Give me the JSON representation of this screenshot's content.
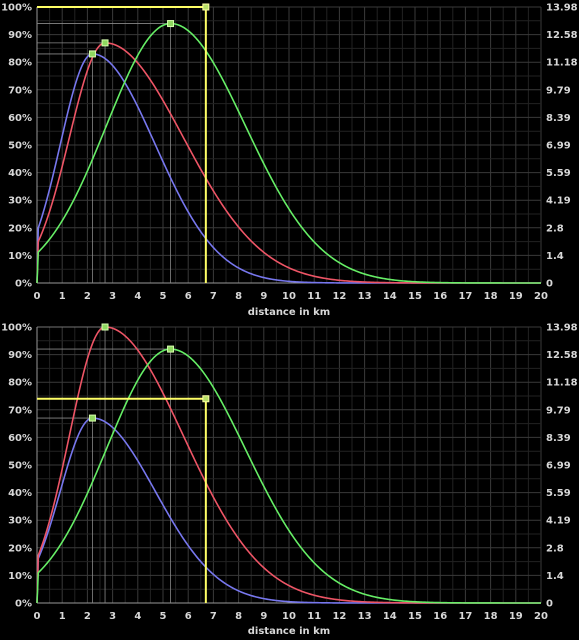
{
  "chart_data": [
    {
      "type": "line",
      "xlabel": "distance in km",
      "xlim": [
        0,
        20
      ],
      "x_ticks": [
        "0",
        "1",
        "2",
        "3",
        "4",
        "5",
        "6",
        "7",
        "8",
        "9",
        "10",
        "11",
        "12",
        "13",
        "14",
        "15",
        "16",
        "17",
        "18",
        "19",
        "20"
      ],
      "ylim_left": [
        0,
        100
      ],
      "y_ticks_left": [
        "0%",
        "10%",
        "20%",
        "30%",
        "40%",
        "50%",
        "60%",
        "70%",
        "80%",
        "90%",
        "100%"
      ],
      "ylim_right": [
        0,
        13.98
      ],
      "y_ticks_right": [
        "0",
        "1.4",
        "2.8",
        "4.19",
        "5.59",
        "6.99",
        "8.39",
        "9.79",
        "11.18",
        "12.58",
        "13.98"
      ],
      "grid": true,
      "series": [
        {
          "color": "#7777ee",
          "peak": [
            2.2,
            83
          ],
          "spread": [
            1.8,
            3.6
          ]
        },
        {
          "color": "#ee5566",
          "peak": [
            2.7,
            87
          ],
          "spread": [
            2.0,
            4.5
          ]
        },
        {
          "color": "#66ee66",
          "peak": [
            5.3,
            94
          ],
          "spread": [
            3.6,
            4.3
          ]
        }
      ],
      "marker_line": {
        "x": 6.7,
        "y": 100,
        "color": "#ffff66"
      }
    },
    {
      "type": "line",
      "xlabel": "distance in km",
      "xlim": [
        0,
        20
      ],
      "x_ticks": [
        "0",
        "1",
        "2",
        "3",
        "4",
        "5",
        "6",
        "7",
        "8",
        "9",
        "10",
        "11",
        "12",
        "13",
        "14",
        "15",
        "16",
        "17",
        "18",
        "19",
        "20"
      ],
      "ylim_left": [
        0,
        100
      ],
      "y_ticks_left": [
        "0%",
        "10%",
        "20%",
        "30%",
        "40%",
        "50%",
        "60%",
        "70%",
        "80%",
        "90%",
        "100%"
      ],
      "ylim_right": [
        0,
        13.98
      ],
      "y_ticks_right": [
        "0",
        "1.4",
        "2.8",
        "4.19",
        "5.59",
        "6.99",
        "8.39",
        "9.79",
        "11.18",
        "12.58",
        "13.98"
      ],
      "grid": true,
      "series": [
        {
          "color": "#7777ee",
          "peak": [
            2.2,
            67
          ],
          "spread": [
            1.8,
            3.6
          ]
        },
        {
          "color": "#ee5566",
          "peak": [
            2.7,
            100
          ],
          "spread": [
            2.0,
            4.5
          ]
        },
        {
          "color": "#66ee66",
          "peak": [
            5.3,
            92
          ],
          "spread": [
            3.6,
            4.3
          ]
        }
      ],
      "marker_line": {
        "x": 6.7,
        "y": 74,
        "color": "#ffff66"
      }
    }
  ]
}
